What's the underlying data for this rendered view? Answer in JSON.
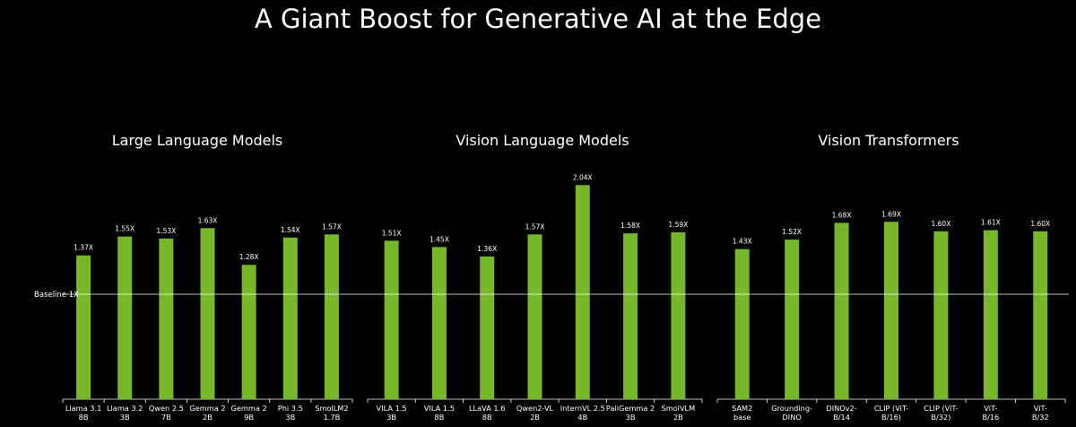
{
  "title": "A Giant Boost for Generative AI at the Edge",
  "baseline_label": "Baseline 1X",
  "colors": {
    "bar": "#76b82a",
    "background": "#000000",
    "text": "#ffffff",
    "baseline": "#ffffff"
  },
  "chart_data": [
    {
      "type": "bar",
      "title": "Large Language Models",
      "categories": [
        "Llama 3.1\n8B",
        "Llama 3.2\n3B",
        "Qwen 2.5\n7B",
        "Gemma 2\n2B",
        "Gemma 2\n9B",
        "Phi 3.5\n3B",
        "SmolLM2\n1.7B"
      ],
      "values": [
        1.37,
        1.55,
        1.53,
        1.63,
        1.28,
        1.54,
        1.57
      ],
      "value_labels": [
        "1.37X",
        "1.55X",
        "1.53X",
        "1.63X",
        "1.28X",
        "1.54X",
        "1.57X"
      ],
      "baseline": 1,
      "ylim": [
        0,
        2.2
      ]
    },
    {
      "type": "bar",
      "title": "Vision Language Models",
      "categories": [
        "VILA 1.5\n3B",
        "VILA 1.5\n8B",
        "LLaVA 1.6\n8B",
        "Qwen2-VL\n2B",
        "InternVL 2.5\n4B",
        "PaliGemma 2\n3B",
        "SmolVLM\n2B"
      ],
      "values": [
        1.51,
        1.45,
        1.36,
        1.57,
        2.04,
        1.58,
        1.59
      ],
      "value_labels": [
        "1.51X",
        "1.45X",
        "1.36X",
        "1.57X",
        "2.04X",
        "1.58X",
        "1.59X"
      ],
      "baseline": 1,
      "ylim": [
        0,
        2.2
      ]
    },
    {
      "type": "bar",
      "title": "Vision Transformers",
      "categories": [
        "SAM2\nbase",
        "Grounding-\nDINO",
        "DINOv2-\nB/14",
        "CLIP (ViT-\nB/16)",
        "CLIP (ViT-\nB/32)",
        "ViT-\nB/16",
        "ViT-\nB/32"
      ],
      "values": [
        1.43,
        1.52,
        1.68,
        1.69,
        1.6,
        1.61,
        1.6
      ],
      "value_labels": [
        "1.43X",
        "1.52X",
        "1.68X",
        "1.69X",
        "1.60X",
        "1.61X",
        "1.60X"
      ],
      "baseline": 1,
      "ylim": [
        0,
        2.2
      ]
    }
  ]
}
